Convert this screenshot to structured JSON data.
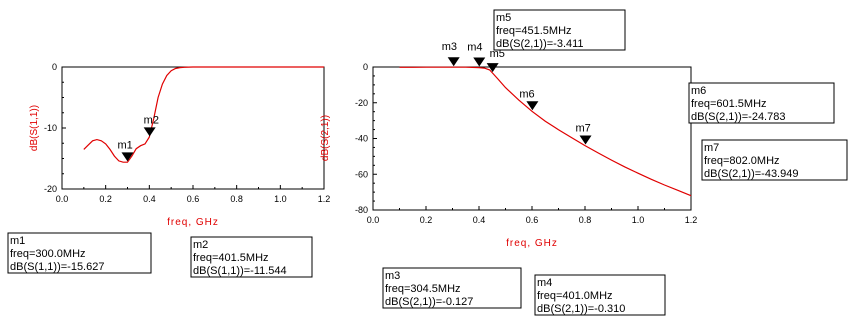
{
  "colors": {
    "trace": "#e00000",
    "axis": "#000000",
    "axis_label": "#e00000",
    "background": "#ffffff"
  },
  "chart_data": [
    {
      "type": "line",
      "title": "",
      "xlabel": "freq, GHz",
      "ylabel": "dB(S(1,1))",
      "xlim": [
        0.0,
        1.2
      ],
      "ylim": [
        -20,
        0
      ],
      "xticks": [
        0.0,
        0.2,
        0.4,
        0.6,
        0.8,
        1.0,
        1.2
      ],
      "xtick_labels": [
        "0.0",
        "0.2",
        "0.4",
        "0.6",
        "0.8",
        "1.0",
        "1.2"
      ],
      "yticks": [
        -20,
        -10,
        0
      ],
      "ytick_labels": [
        "-20",
        "-10",
        "0"
      ],
      "grid": false,
      "series": [
        {
          "x": [
            0.1,
            0.12,
            0.14,
            0.16,
            0.18,
            0.2,
            0.22,
            0.24,
            0.26,
            0.28,
            0.3,
            0.32,
            0.34,
            0.36,
            0.38,
            0.4,
            0.42,
            0.44,
            0.46,
            0.48,
            0.5,
            0.52,
            0.54,
            0.56,
            0.58,
            0.6,
            0.7,
            0.8,
            0.9,
            1.0,
            1.1,
            1.2
          ],
          "y": [
            -13.5,
            -12.8,
            -12.1,
            -11.9,
            -12.1,
            -12.6,
            -13.5,
            -14.6,
            -15.4,
            -15.6,
            -15.6,
            -14.6,
            -13.4,
            -12.9,
            -12.6,
            -11.5,
            -8.5,
            -5.0,
            -2.8,
            -1.4,
            -0.6,
            -0.25,
            -0.1,
            -0.05,
            -0.02,
            0.0,
            0.0,
            0.0,
            0.0,
            0.0,
            0.0,
            0.0
          ]
        }
      ],
      "markers": [
        {
          "name": "m1",
          "x": 0.3,
          "y": -15.627,
          "freq": "freq=300.0MHz",
          "value": "dB(S(1,1))=-15.627"
        },
        {
          "name": "m2",
          "x": 0.4015,
          "y": -11.544,
          "freq": "freq=401.5MHz",
          "value": "dB(S(1,1))=-11.544"
        }
      ]
    },
    {
      "type": "line",
      "title": "",
      "xlabel": "freq, GHz",
      "ylabel": "dB(S(2,1))",
      "xlim": [
        0.0,
        1.2
      ],
      "ylim": [
        -80,
        0
      ],
      "xticks": [
        0.0,
        0.2,
        0.4,
        0.6,
        0.8,
        1.0,
        1.2
      ],
      "xtick_labels": [
        "0.0",
        "0.2",
        "0.4",
        "0.6",
        "0.8",
        "1.0",
        "1.2"
      ],
      "yticks": [
        -80,
        -60,
        -40,
        -20,
        0
      ],
      "ytick_labels": [
        "-80",
        "-60",
        "-40",
        "-20",
        "0"
      ],
      "grid": false,
      "series": [
        {
          "x": [
            0.1,
            0.15,
            0.2,
            0.25,
            0.3,
            0.35,
            0.4,
            0.42,
            0.44,
            0.4515,
            0.47,
            0.5,
            0.55,
            0.6,
            0.65,
            0.7,
            0.75,
            0.8,
            0.85,
            0.9,
            0.95,
            1.0,
            1.05,
            1.1,
            1.15,
            1.2
          ],
          "y": [
            -0.15,
            -0.14,
            -0.13,
            -0.13,
            -0.127,
            -0.13,
            -0.31,
            -0.6,
            -1.6,
            -3.411,
            -6.5,
            -11.5,
            -18.5,
            -24.8,
            -30.3,
            -35.1,
            -39.6,
            -43.95,
            -48.1,
            -52.1,
            -55.9,
            -59.4,
            -62.8,
            -66.0,
            -69.0,
            -72.0
          ]
        }
      ],
      "markers": [
        {
          "name": "m3",
          "x": 0.3045,
          "y": -0.127,
          "freq": "freq=304.5MHz",
          "value": "dB(S(2,1))=-0.127"
        },
        {
          "name": "m4",
          "x": 0.401,
          "y": -0.31,
          "freq": "freq=401.0MHz",
          "value": "dB(S(2,1))=-0.310"
        },
        {
          "name": "m5",
          "x": 0.4515,
          "y": -3.411,
          "freq": "freq=451.5MHz",
          "value": "dB(S(2,1))=-3.411"
        },
        {
          "name": "m6",
          "x": 0.6015,
          "y": -24.783,
          "freq": "freq=601.5MHz",
          "value": "dB(S(2,1))=-24.783"
        },
        {
          "name": "m7",
          "x": 0.802,
          "y": -43.949,
          "freq": "freq=802.0MHz",
          "value": "dB(S(2,1))=-43.949"
        }
      ]
    }
  ]
}
